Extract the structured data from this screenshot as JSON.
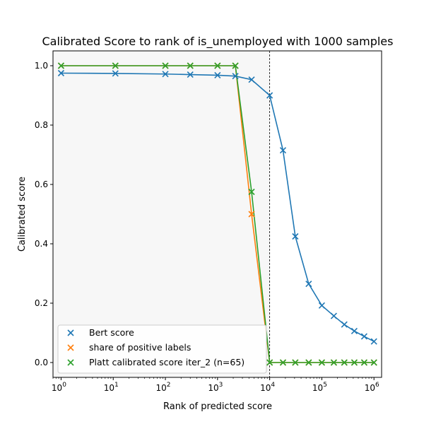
{
  "chart_data": {
    "type": "line",
    "title": "Calibrated Score to rank of is_unemployed with 1000 samples",
    "xlabel": "Rank of predicted score",
    "ylabel": "Calibrated score",
    "xscale": "log",
    "xlim": [
      0.7,
      1400000
    ],
    "ylim": [
      -0.05,
      1.05
    ],
    "x_ticks": [
      {
        "value": 1,
        "base": "10",
        "exp": "0"
      },
      {
        "value": 10,
        "base": "10",
        "exp": "1"
      },
      {
        "value": 100,
        "base": "10",
        "exp": "2"
      },
      {
        "value": 1000,
        "base": "10",
        "exp": "3"
      },
      {
        "value": 10000,
        "base": "10",
        "exp": "4"
      },
      {
        "value": 100000,
        "base": "10",
        "exp": "5"
      },
      {
        "value": 1000000,
        "base": "10",
        "exp": "6"
      }
    ],
    "y_ticks": [
      {
        "value": 0.0,
        "label": "0.0"
      },
      {
        "value": 0.2,
        "label": "0.2"
      },
      {
        "value": 0.4,
        "label": "0.4"
      },
      {
        "value": 0.6,
        "label": "0.6"
      },
      {
        "value": 0.8,
        "label": "0.8"
      },
      {
        "value": 1.0,
        "label": "1.0"
      }
    ],
    "shaded_region": {
      "x0": 0.7,
      "x1": 10000,
      "color": "#f7f7f7"
    },
    "vline": {
      "x": 10000,
      "color": "#000000",
      "style": "dashed"
    },
    "legend_position": "lower-left",
    "series": [
      {
        "name": "Bert score",
        "color": "#1f77b4",
        "marker": "x",
        "x": [
          1,
          11,
          100,
          300,
          1000,
          2200,
          4500,
          10000,
          18000,
          31000,
          56000,
          100000,
          170000,
          270000,
          420000,
          650000,
          1000000
        ],
        "y": [
          0.975,
          0.974,
          0.972,
          0.97,
          0.968,
          0.965,
          0.953,
          0.9,
          0.715,
          0.425,
          0.265,
          0.192,
          0.157,
          0.128,
          0.106,
          0.088,
          0.071
        ]
      },
      {
        "name": "share of positive labels",
        "color": "#ff7f0e",
        "marker": "x",
        "x": [
          1,
          11,
          100,
          300,
          1000,
          2200,
          4500,
          10000,
          18000,
          31000,
          56000,
          100000,
          170000,
          270000,
          420000,
          650000,
          1000000
        ],
        "y": [
          1.0,
          1.0,
          1.0,
          1.0,
          1.0,
          1.0,
          0.5,
          0.0,
          0.0,
          0.0,
          0.0,
          0.0,
          0.0,
          0.0,
          0.0,
          0.0,
          0.0
        ]
      },
      {
        "name": "Platt calibrated score iter_2 (n=65)",
        "color": "#2ca02c",
        "marker": "x",
        "x": [
          1,
          11,
          100,
          300,
          1000,
          2200,
          4500,
          10000,
          18000,
          31000,
          56000,
          100000,
          170000,
          270000,
          420000,
          650000,
          1000000
        ],
        "y": [
          1.0,
          1.0,
          1.0,
          1.0,
          1.0,
          1.0,
          0.575,
          0.0,
          0.0,
          0.0,
          0.0,
          0.0,
          0.0,
          0.0,
          0.0,
          0.0,
          0.0
        ]
      }
    ]
  }
}
